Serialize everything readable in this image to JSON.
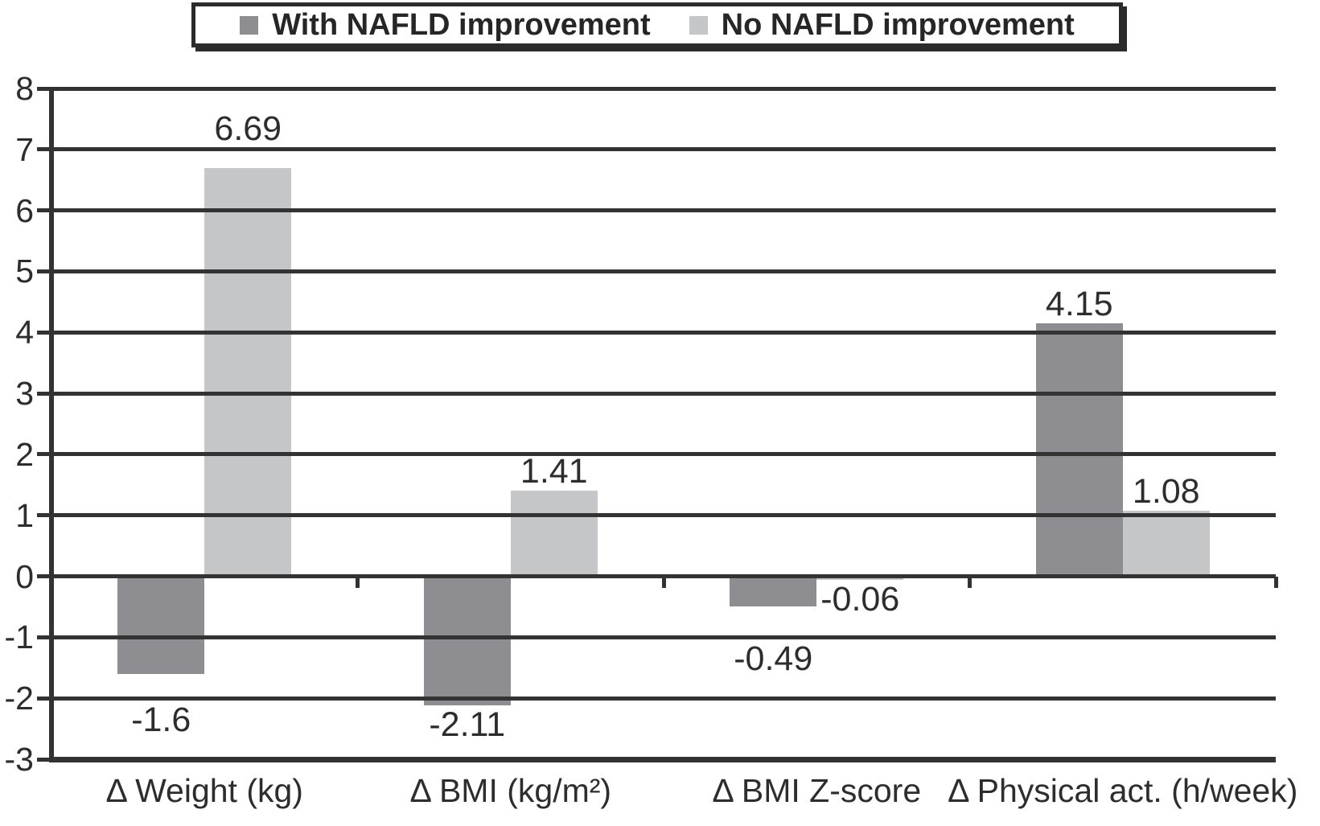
{
  "figure": {
    "background": "#ffffff",
    "line_color": "#333333",
    "text_color": "#2d2d2d"
  },
  "legend": {
    "position": "top-center",
    "border_color": "#2b2b2b",
    "items": [
      {
        "label": "With NAFLD improvement",
        "color": "#8e8e92"
      },
      {
        "label": "No NAFLD improvement",
        "color": "#c5c6c8"
      }
    ]
  },
  "chart_data": {
    "type": "bar",
    "title": "",
    "xlabel": "",
    "ylabel": "",
    "categories": [
      "Δ Weight (kg)",
      "Δ BMI (kg/m²)",
      "Δ BMI Z-score",
      "Δ Physical act. (h/week)"
    ],
    "series": [
      {
        "name": "With NAFLD improvement",
        "color": "#8e8e92",
        "values": [
          -1.6,
          -2.11,
          -0.49,
          4.15
        ],
        "data_labels": [
          "-1.6",
          "-2.11",
          "-0.49",
          "4.15"
        ]
      },
      {
        "name": "No NAFLD improvement",
        "color": "#c5c6c8",
        "values": [
          6.69,
          1.41,
          -0.06,
          1.08
        ],
        "data_labels": [
          "6.69",
          "1.41",
          "-0.06",
          "1.08"
        ]
      }
    ],
    "ylim": [
      -3,
      8
    ],
    "yticks": [
      8,
      7,
      6,
      5,
      4,
      3,
      2,
      1,
      0,
      -1,
      -2,
      -3
    ],
    "ytick_labels": [
      "8",
      "7",
      "6",
      "5",
      "4",
      "3",
      "2",
      "1",
      "0",
      "-1",
      "-2",
      "-3"
    ],
    "grid": true,
    "legend_position": "top"
  }
}
